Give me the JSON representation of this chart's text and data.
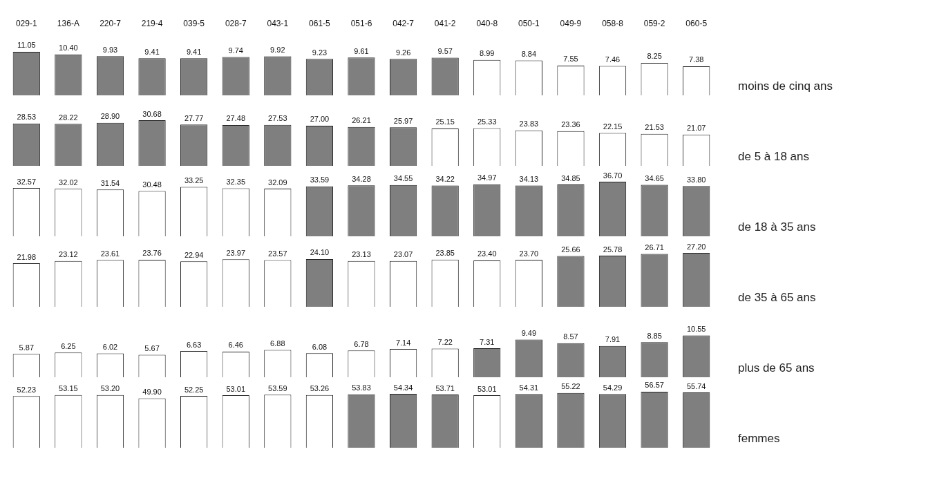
{
  "chart_data": [
    {
      "type": "bar",
      "annotations": [
        "moins de cinq ans"
      ],
      "tick_labels": "x",
      "categories": [
        "029-1",
        "136-A",
        "220-7",
        "219-4",
        "039-5",
        "028-7",
        "043-1",
        "061-5",
        "051-6",
        "042-7",
        "041-2",
        "040-8",
        "050-1",
        "049-9",
        "058-8",
        "059-2",
        "060-5"
      ],
      "values": [
        11.05,
        10.4,
        9.93,
        9.41,
        9.41,
        9.74,
        9.92,
        9.23,
        9.61,
        9.26,
        9.57,
        8.99,
        8.84,
        7.55,
        7.46,
        8.25,
        7.38
      ],
      "value_labels": [
        "11.05",
        "10.40",
        "9.93",
        "9.41",
        "9.41",
        "9.74",
        "9.92",
        "9.23",
        "9.61",
        "9.26",
        "9.57",
        "8.99",
        "8.84",
        "7.55",
        "7.46",
        "8.25",
        "7.38"
      ],
      "colors": [
        "#7f7f7f",
        "#7f7f7f",
        "#7f7f7f",
        "#7f7f7f",
        "#7f7f7f",
        "#7f7f7f",
        "#7f7f7f",
        "#7f7f7f",
        "#7f7f7f",
        "#7f7f7f",
        "#7f7f7f",
        "#ffffff",
        "#ffffff",
        "#ffffff",
        "#ffffff",
        "#ffffff",
        "#ffffff"
      ]
    },
    {
      "type": "bar",
      "annotations": [
        "de 5 à 18 ans"
      ],
      "tick_labels": false,
      "categories": [
        null,
        null,
        null,
        null,
        null,
        null,
        null,
        null,
        null,
        null,
        null,
        null,
        null,
        null,
        null,
        null,
        null
      ],
      "values": [
        28.53,
        28.22,
        28.9,
        30.68,
        27.77,
        27.48,
        27.53,
        27.0,
        26.21,
        25.97,
        25.15,
        25.33,
        23.83,
        23.36,
        22.15,
        21.53,
        21.07
      ],
      "value_labels": [
        "28.53",
        "28.22",
        "28.90",
        "30.68",
        "27.77",
        "27.48",
        "27.53",
        "27.00",
        "26.21",
        "25.97",
        "25.15",
        "25.33",
        "23.83",
        "23.36",
        "22.15",
        "21.53",
        "21.07"
      ],
      "colors": [
        "#7f7f7f",
        "#7f7f7f",
        "#7f7f7f",
        "#7f7f7f",
        "#7f7f7f",
        "#7f7f7f",
        "#7f7f7f",
        "#7f7f7f",
        "#7f7f7f",
        "#7f7f7f",
        "#ffffff",
        "#ffffff",
        "#ffffff",
        "#ffffff",
        "#ffffff",
        "#ffffff",
        "#ffffff"
      ]
    },
    {
      "type": "bar",
      "annotations": [
        "de 18 à 35 ans"
      ],
      "tick_labels": false,
      "categories": [
        null,
        null,
        null,
        null,
        null,
        null,
        null,
        null,
        null,
        null,
        null,
        null,
        null,
        null,
        null,
        null,
        null
      ],
      "values": [
        32.57,
        32.02,
        31.54,
        30.48,
        33.25,
        32.35,
        32.09,
        33.59,
        34.28,
        34.55,
        34.22,
        34.97,
        34.13,
        34.85,
        36.7,
        34.65,
        33.8
      ],
      "value_labels": [
        "32.57",
        "32.02",
        "31.54",
        "30.48",
        "33.25",
        "32.35",
        "32.09",
        "33.59",
        "34.28",
        "34.55",
        "34.22",
        "34.97",
        "34.13",
        "34.85",
        "36.70",
        "34.65",
        "33.80"
      ],
      "colors": [
        "#ffffff",
        "#ffffff",
        "#ffffff",
        "#ffffff",
        "#ffffff",
        "#ffffff",
        "#ffffff",
        "#7f7f7f",
        "#7f7f7f",
        "#7f7f7f",
        "#7f7f7f",
        "#7f7f7f",
        "#7f7f7f",
        "#7f7f7f",
        "#7f7f7f",
        "#7f7f7f",
        "#7f7f7f"
      ]
    },
    {
      "type": "bar",
      "annotations": [
        "de 35 à 65 ans"
      ],
      "tick_labels": false,
      "categories": [
        null,
        null,
        null,
        null,
        null,
        null,
        null,
        null,
        null,
        null,
        null,
        null,
        null,
        null,
        null,
        null,
        null
      ],
      "values": [
        21.98,
        23.12,
        23.61,
        23.76,
        22.94,
        23.97,
        23.57,
        24.1,
        23.13,
        23.07,
        23.85,
        23.4,
        23.7,
        25.66,
        25.78,
        26.71,
        27.2
      ],
      "value_labels": [
        "21.98",
        "23.12",
        "23.61",
        "23.76",
        "22.94",
        "23.97",
        "23.57",
        "24.10",
        "23.13",
        "23.07",
        "23.85",
        "23.40",
        "23.70",
        "25.66",
        "25.78",
        "26.71",
        "27.20"
      ],
      "colors": [
        "#ffffff",
        "#ffffff",
        "#ffffff",
        "#ffffff",
        "#ffffff",
        "#ffffff",
        "#ffffff",
        "#7f7f7f",
        "#ffffff",
        "#ffffff",
        "#ffffff",
        "#ffffff",
        "#ffffff",
        "#7f7f7f",
        "#7f7f7f",
        "#7f7f7f",
        "#7f7f7f"
      ]
    },
    {
      "type": "bar",
      "annotations": [
        "plus de 65 ans"
      ],
      "tick_labels": false,
      "categories": [
        null,
        null,
        null,
        null,
        null,
        null,
        null,
        null,
        null,
        null,
        null,
        null,
        null,
        null,
        null,
        null,
        null
      ],
      "values": [
        5.87,
        6.25,
        6.02,
        5.67,
        6.63,
        6.46,
        6.88,
        6.08,
        6.78,
        7.14,
        7.22,
        7.31,
        9.49,
        8.57,
        7.91,
        8.85,
        10.55
      ],
      "value_labels": [
        "5.87",
        "6.25",
        "6.02",
        "5.67",
        "6.63",
        "6.46",
        "6.88",
        "6.08",
        "6.78",
        "7.14",
        "7.22",
        "7.31",
        "9.49",
        "8.57",
        "7.91",
        "8.85",
        "10.55"
      ],
      "colors": [
        "#ffffff",
        "#ffffff",
        "#ffffff",
        "#ffffff",
        "#ffffff",
        "#ffffff",
        "#ffffff",
        "#ffffff",
        "#ffffff",
        "#ffffff",
        "#ffffff",
        "#7f7f7f",
        "#7f7f7f",
        "#7f7f7f",
        "#7f7f7f",
        "#7f7f7f",
        "#7f7f7f"
      ]
    },
    {
      "type": "bar",
      "annotations": [
        "femmes"
      ],
      "tick_labels": false,
      "categories": [
        null,
        null,
        null,
        null,
        null,
        null,
        null,
        null,
        null,
        null,
        null,
        null,
        null,
        null,
        null,
        null,
        null
      ],
      "values": [
        52.23,
        53.15,
        53.2,
        49.9,
        52.25,
        53.01,
        53.59,
        53.26,
        53.83,
        54.34,
        53.71,
        53.01,
        54.31,
        55.22,
        54.29,
        56.57,
        55.74
      ],
      "value_labels": [
        "52.23",
        "53.15",
        "53.20",
        "49.90",
        "52.25",
        "53.01",
        "53.59",
        "53.26",
        "53.83",
        "54.34",
        "53.71",
        "53.01",
        "54.31",
        "55.22",
        "54.29",
        "56.57",
        "55.74"
      ],
      "colors": [
        "#ffffff",
        "#ffffff",
        "#ffffff",
        "#ffffff",
        "#ffffff",
        "#ffffff",
        "#ffffff",
        "#ffffff",
        "#7f7f7f",
        "#7f7f7f",
        "#7f7f7f",
        "#ffffff",
        "#7f7f7f",
        "#7f7f7f",
        "#7f7f7f",
        "#7f7f7f",
        "#7f7f7f"
      ]
    }
  ]
}
